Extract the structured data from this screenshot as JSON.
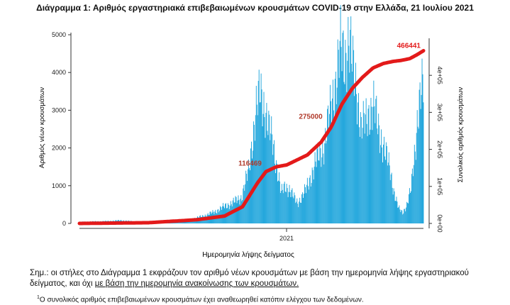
{
  "chart_data": {
    "type": "bar+line",
    "title": "Διάγραμμα 1: Αριθμός εργαστηριακά επιβεβαιωμένων κρουσμάτων COVID-19 στην Ελλάδα, 21 Ιουλίου 2021",
    "xlabel": "Ημερομηνία λήψης δείγματος",
    "x_ticks": [
      "2021"
    ],
    "ylabel_left": "Αριθμός νέων κρουσμάτων",
    "ylabel_right": "Συνολικός αριθμός κρουσμάτων",
    "ylim_left": [
      0,
      5000
    ],
    "yticks_left": [
      "0",
      "1000",
      "2000",
      "3000",
      "4000",
      "5000"
    ],
    "ylim_right": [
      0,
      500000
    ],
    "yticks_right": [
      "0e+00",
      "1e+05",
      "2e+05",
      "3e+05",
      "4e+05"
    ],
    "grid": false,
    "colors": {
      "bars": "#1aa3db",
      "cumulative_line": "#e31a1a"
    },
    "series": [
      {
        "kind": "bar",
        "axis": "left",
        "anchors_index_value": [
          [
            0,
            40
          ],
          [
            40,
            60
          ],
          [
            60,
            80
          ],
          [
            80,
            50
          ],
          [
            100,
            30
          ],
          [
            120,
            20
          ],
          [
            140,
            40
          ],
          [
            160,
            100
          ],
          [
            180,
            200
          ],
          [
            195,
            300
          ],
          [
            210,
            450
          ],
          [
            222,
            550
          ],
          [
            235,
            700
          ],
          [
            245,
            1400
          ],
          [
            250,
            2200
          ],
          [
            256,
            3000
          ],
          [
            262,
            3500
          ],
          [
            268,
            3100
          ],
          [
            274,
            2500
          ],
          [
            280,
            2200
          ],
          [
            286,
            1500
          ],
          [
            292,
            800
          ],
          [
            298,
            1000
          ],
          [
            304,
            900
          ],
          [
            310,
            700
          ],
          [
            316,
            550
          ],
          [
            322,
            700
          ],
          [
            328,
            900
          ],
          [
            336,
            1300
          ],
          [
            345,
            1750
          ],
          [
            355,
            2100
          ],
          [
            365,
            3200
          ],
          [
            372,
            3900
          ],
          [
            378,
            4600
          ],
          [
            384,
            4400
          ],
          [
            390,
            4900
          ],
          [
            396,
            4100
          ],
          [
            402,
            3500
          ],
          [
            408,
            2500
          ],
          [
            414,
            2700
          ],
          [
            420,
            3000
          ],
          [
            426,
            3100
          ],
          [
            432,
            2600
          ],
          [
            438,
            2200
          ],
          [
            444,
            1800
          ],
          [
            450,
            1400
          ],
          [
            456,
            800
          ],
          [
            462,
            400
          ],
          [
            468,
            280
          ],
          [
            474,
            500
          ],
          [
            480,
            900
          ],
          [
            486,
            2000
          ],
          [
            490,
            3000
          ],
          [
            494,
            3400
          ],
          [
            498,
            3600
          ]
        ]
      },
      {
        "kind": "line",
        "axis": "right",
        "name": "cumulative",
        "anchors_index_value": [
          [
            0,
            0
          ],
          [
            100,
            2000
          ],
          [
            170,
            10000
          ],
          [
            210,
            20000
          ],
          [
            236,
            45000
          ],
          [
            258,
            110000
          ],
          [
            270,
            140000
          ],
          [
            285,
            153000
          ],
          [
            300,
            158000
          ],
          [
            330,
            185000
          ],
          [
            350,
            220000
          ],
          [
            365,
            262000
          ],
          [
            380,
            322000
          ],
          [
            395,
            365000
          ],
          [
            410,
            395000
          ],
          [
            425,
            420000
          ],
          [
            440,
            432000
          ],
          [
            455,
            438000
          ],
          [
            465,
            440000
          ],
          [
            478,
            445000
          ],
          [
            488,
            455000
          ],
          [
            498,
            466441
          ]
        ]
      }
    ],
    "annotations": [
      {
        "text": "466441",
        "x_index": 498,
        "y_right": 466441
      },
      {
        "text": "275000",
        "x_index": 356,
        "y_right": 275000
      },
      {
        "text": "116469",
        "x_index": 268,
        "y_right": 148000
      }
    ]
  },
  "note": {
    "text1": "Σημ.: οι στήλες στο Διάγραμμα 1 εκφράζουν τον αριθμό νέων κρουσμάτων με βάση την ημερομηνία λήψης εργαστηριακού δείγματος, και όχι ",
    "text2": "με βάση την ημερομηνία ανακοίνωσης των κρουσμάτων."
  },
  "footnote": {
    "marker": "1",
    "text": "Ο συνολικός αριθμός επιβεβαιωμένων κρουσμάτων έχει αναθεωρηθεί κατόπιν ελέγχου των δεδομένων."
  }
}
